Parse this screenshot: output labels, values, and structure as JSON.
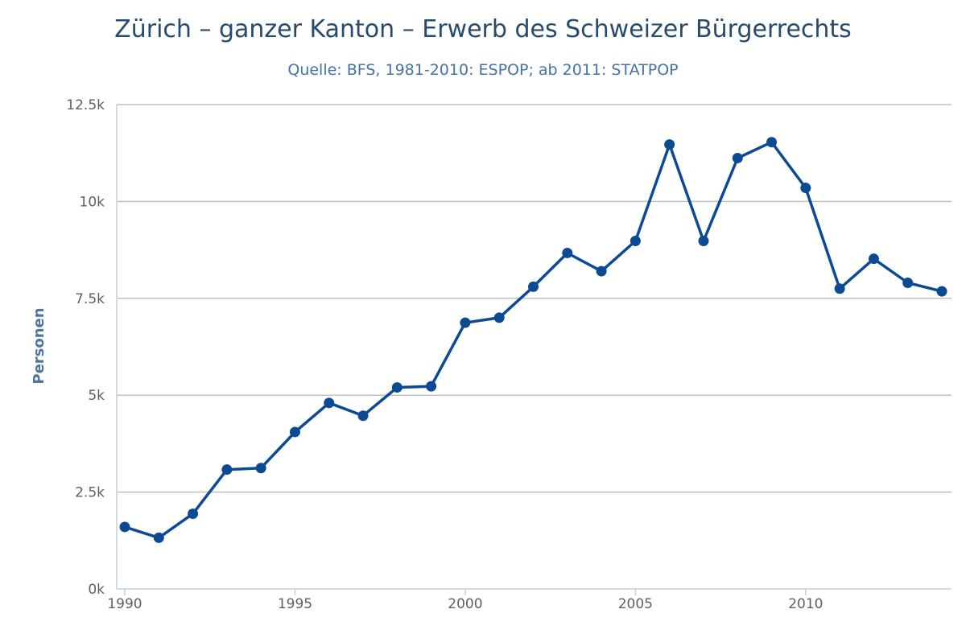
{
  "chart": {
    "title": "Zürich – ganzer Kanton – Erwerb des Schweizer Bürgerrechts",
    "subtitle": "Quelle: BFS, 1981-2010: ESPOP; ab 2011: STATPOP"
  },
  "colors": {
    "series": "#0d4a94",
    "title": "#274b6d",
    "subtitle": "#4572a7",
    "axis_title": "#4d759e"
  },
  "chart_data": {
    "type": "line",
    "title": "Zürich – ganzer Kanton – Erwerb des Schweizer Bürgerrechts",
    "subtitle": "Quelle: BFS, 1981-2010: ESPOP; ab 2011: STATPOP",
    "xlabel": "",
    "ylabel": "Personen",
    "xlim": [
      1990,
      2014
    ],
    "ylim": [
      0,
      12500
    ],
    "x_ticks": [
      1990,
      1995,
      2000,
      2005,
      2010
    ],
    "x_tick_labels": [
      "1990",
      "1995",
      "2000",
      "2005",
      "2010"
    ],
    "y_ticks": [
      0,
      2500,
      5000,
      7500,
      10000,
      12500
    ],
    "y_tick_labels": [
      "0k",
      "2.5k",
      "5k",
      "7.5k",
      "10k",
      "12.5k"
    ],
    "grid": true,
    "legend": "none",
    "series": [
      {
        "x": [
          1990,
          1991,
          1992,
          1993,
          1994,
          1995,
          1996,
          1997,
          1998,
          1999,
          2000,
          2001,
          2002,
          2003,
          2004,
          2005,
          2006,
          2007,
          2008,
          2009,
          2010,
          2011,
          2012,
          2013,
          2014
        ],
        "values": [
          1600,
          1320,
          1940,
          3080,
          3120,
          4050,
          4800,
          4470,
          5200,
          5230,
          6870,
          7000,
          7800,
          8670,
          8200,
          8980,
          11470,
          8980,
          11120,
          11530,
          10350,
          7750,
          8520,
          7900,
          7680
        ]
      }
    ]
  }
}
